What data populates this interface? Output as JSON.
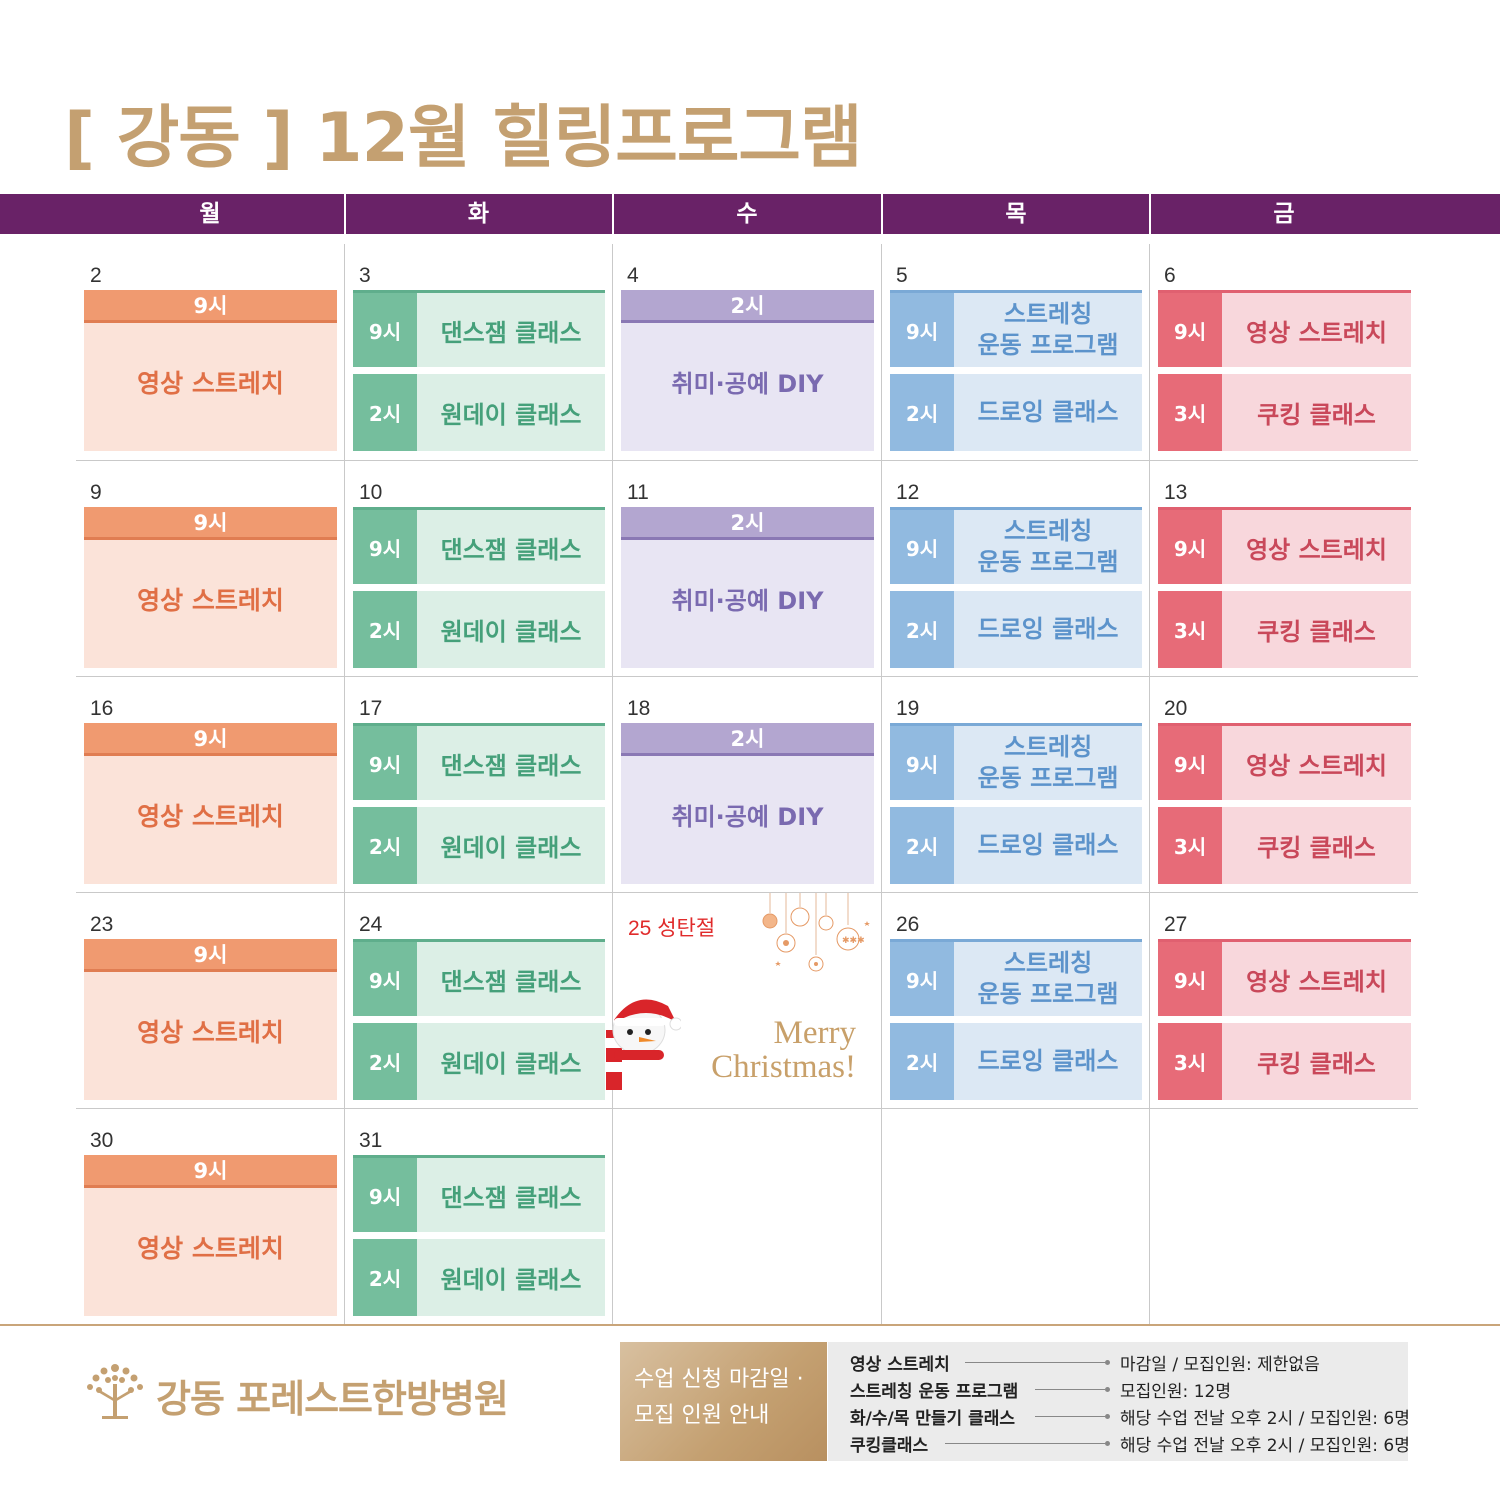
{
  "title": "[ 강동 ] 12월 힐링프로그램",
  "weekdays": [
    "월",
    "화",
    "수",
    "목",
    "금"
  ],
  "monday": {
    "time": "9시",
    "label": "영상 스트레치"
  },
  "tuesday": {
    "time1": "9시",
    "label1": "댄스잼 클래스",
    "time2": "2시",
    "label2": "원데이 클래스"
  },
  "wednesday": {
    "time": "2시",
    "label": "취미·공예 DIY"
  },
  "thursday": {
    "time1": "9시",
    "label1_line1": "스트레칭",
    "label1_line2": "운동 프로그램",
    "time2": "2시",
    "label2": "드로잉 클래스"
  },
  "friday": {
    "time1": "9시",
    "label1": "영상 스트레치",
    "time2": "3시",
    "label2": "쿠킹 클래스"
  },
  "weeks": [
    {
      "mon": "2",
      "tue": "3",
      "wed": "4",
      "thu": "5",
      "fri": "6"
    },
    {
      "mon": "9",
      "tue": "10",
      "wed": "11",
      "thu": "12",
      "fri": "13"
    },
    {
      "mon": "16",
      "tue": "17",
      "wed": "18",
      "thu": "19",
      "fri": "20"
    },
    {
      "mon": "23",
      "tue": "24",
      "wed": "25 성탄절",
      "thu": "26",
      "fri": "27"
    },
    {
      "mon": "30",
      "tue": "31"
    }
  ],
  "christmas": {
    "line1": "Merry",
    "line2": "Christmas!"
  },
  "footer": {
    "hospital_name": "강동 포레스트한방병원",
    "notice_line1": "수업 신청 마감일 ·",
    "notice_line2": "모집 인원 안내",
    "info": [
      {
        "label": "영상 스트레치",
        "value": "마감일 / 모집인원: 제한없음"
      },
      {
        "label": "스트레칭 운동 프로그램",
        "value": "모집인원: 12명"
      },
      {
        "label": "화/수/목 만들기 클래스",
        "value": "해당 수업 전날 오후 2시 / 모집인원: 6명"
      },
      {
        "label": "쿠킹클래스",
        "value": "해당 수업 전날 오후 2시 / 모집인원: 6명"
      }
    ]
  },
  "colors": {
    "header": "#692267",
    "gold": "#c4a071",
    "monday": "#f09a70",
    "tuesday": "#75be9d",
    "wednesday": "#b3a6d0",
    "thursday": "#91bae0",
    "friday": "#e76b78"
  }
}
